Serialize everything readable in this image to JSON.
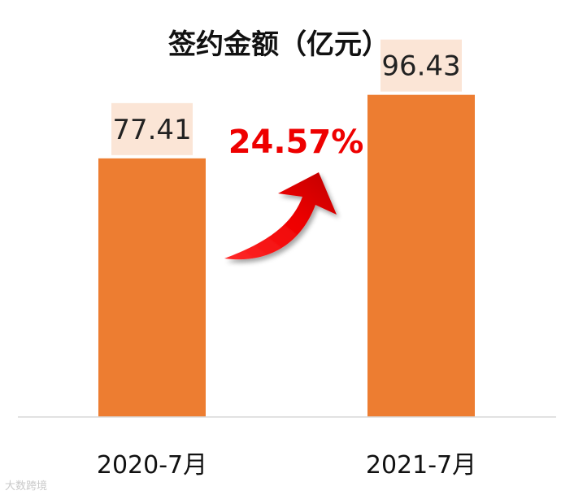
{
  "chart_data": {
    "type": "bar",
    "title": "签约金额（亿元）",
    "categories": [
      "2020-7月",
      "2021-7月"
    ],
    "values": [
      77.41,
      96.43
    ],
    "value_labels": [
      "77.41",
      "96.43"
    ],
    "ylim": [
      0,
      100
    ],
    "grid": false,
    "legend": "none",
    "annotation": {
      "text": "24.57%",
      "shape": "curved-up-arrow",
      "from_category": "2020-7月",
      "to_category": "2021-7月"
    }
  },
  "colors": {
    "bar": "#ED7D31",
    "label_bg": "#FBE5D6",
    "arrow": "#EE0000",
    "growth_text": "#EE0000",
    "axis": "#D9D9D9"
  },
  "watermark": "大数跨境"
}
